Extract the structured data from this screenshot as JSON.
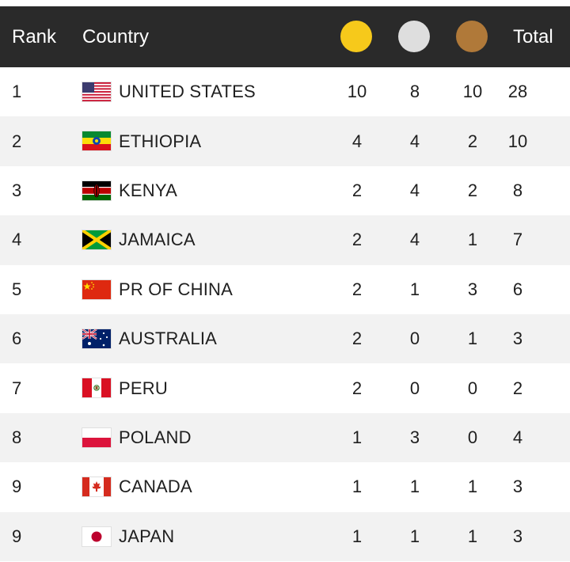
{
  "header": {
    "rank_label": "Rank",
    "country_label": "Country",
    "total_label": "Total",
    "gold_color": "#f6c91b",
    "silver_color": "#dedede",
    "bronze_color": "#b07939"
  },
  "rows": [
    {
      "rank": "1",
      "country": "UNITED STATES",
      "flag": "flag-usa-icon",
      "gold": "10",
      "silver": "8",
      "bronze": "10",
      "total": "28"
    },
    {
      "rank": "2",
      "country": "ETHIOPIA",
      "flag": "flag-ethiopia-icon",
      "gold": "4",
      "silver": "4",
      "bronze": "2",
      "total": "10"
    },
    {
      "rank": "3",
      "country": "KENYA",
      "flag": "flag-kenya-icon",
      "gold": "2",
      "silver": "4",
      "bronze": "2",
      "total": "8"
    },
    {
      "rank": "4",
      "country": "JAMAICA",
      "flag": "flag-jamaica-icon",
      "gold": "2",
      "silver": "4",
      "bronze": "1",
      "total": "7"
    },
    {
      "rank": "5",
      "country": "PR OF CHINA",
      "flag": "flag-china-icon",
      "gold": "2",
      "silver": "1",
      "bronze": "3",
      "total": "6"
    },
    {
      "rank": "6",
      "country": "AUSTRALIA",
      "flag": "flag-australia-icon",
      "gold": "2",
      "silver": "0",
      "bronze": "1",
      "total": "3"
    },
    {
      "rank": "7",
      "country": "PERU",
      "flag": "flag-peru-icon",
      "gold": "2",
      "silver": "0",
      "bronze": "0",
      "total": "2"
    },
    {
      "rank": "8",
      "country": "POLAND",
      "flag": "flag-poland-icon",
      "gold": "1",
      "silver": "3",
      "bronze": "0",
      "total": "4"
    },
    {
      "rank": "9",
      "country": "CANADA",
      "flag": "flag-canada-icon",
      "gold": "1",
      "silver": "1",
      "bronze": "1",
      "total": "3"
    },
    {
      "rank": "9",
      "country": "JAPAN",
      "flag": "flag-japan-icon",
      "gold": "1",
      "silver": "1",
      "bronze": "1",
      "total": "3"
    }
  ]
}
